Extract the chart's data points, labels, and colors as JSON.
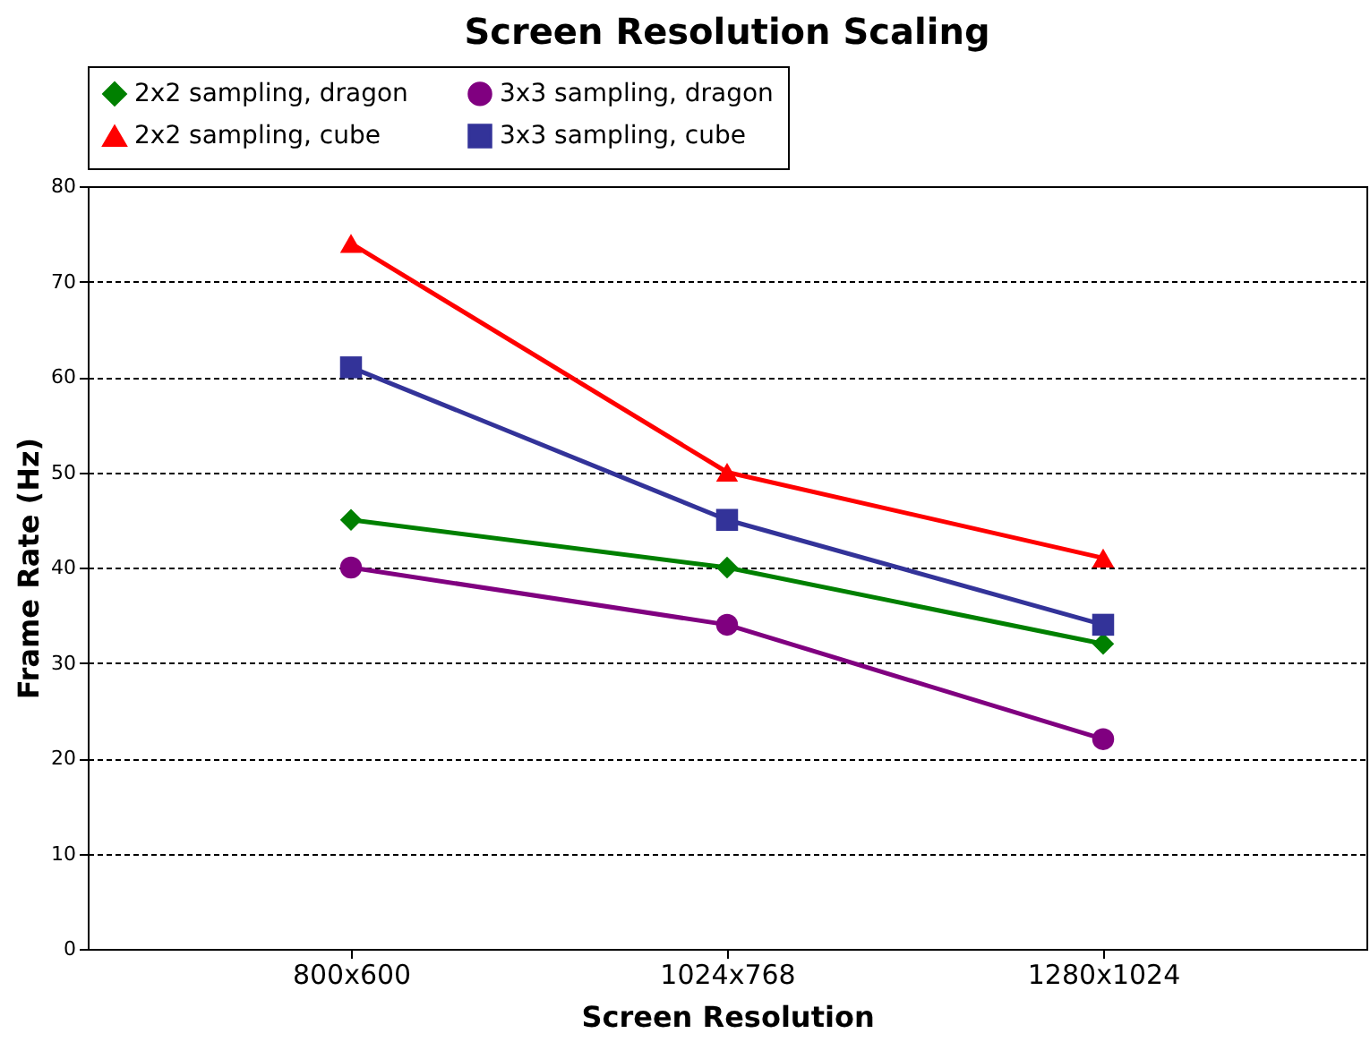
{
  "chart_data": {
    "type": "line",
    "title": "Screen Resolution Scaling",
    "xlabel": "Screen Resolution",
    "ylabel": "Frame Rate (Hz)",
    "categories": [
      "800x600",
      "1024x768",
      "1280x1024"
    ],
    "series": [
      {
        "name": "2x2 sampling, dragon",
        "color": "#008000",
        "marker": "diamond",
        "values": [
          45,
          40,
          32
        ]
      },
      {
        "name": "3x3 sampling, dragon",
        "color": "#800080",
        "marker": "circle",
        "values": [
          40,
          34,
          22
        ]
      },
      {
        "name": "2x2 sampling, cube",
        "color": "#ff0000",
        "marker": "triangle",
        "values": [
          74,
          50,
          41
        ]
      },
      {
        "name": "3x3 sampling, cube",
        "color": "#333399",
        "marker": "square",
        "values": [
          61,
          45,
          34
        ]
      }
    ],
    "ylim": [
      0,
      80
    ],
    "yticks": [
      0,
      10,
      20,
      30,
      40,
      50,
      60,
      70,
      80
    ],
    "grid": "y",
    "legend": "top",
    "line_style": "solid"
  }
}
